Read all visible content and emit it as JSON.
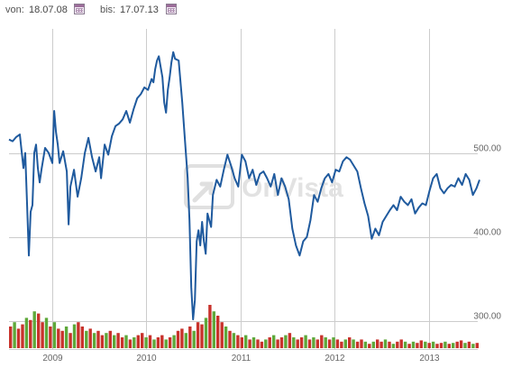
{
  "toolbar": {
    "from_label": "von:",
    "from_value": "18.07.08",
    "to_label": "bis:",
    "to_value": "17.07.13",
    "from_icon": "calendar-icon",
    "to_icon": "calendar-icon"
  },
  "watermark": {
    "text": "OnVista",
    "icon": "onvista-logo"
  },
  "colors": {
    "line": "#1f5a9e",
    "grid": "#cccccc",
    "vol_up": "#5ea83a",
    "vol_down": "#c8322b"
  },
  "chart_data": {
    "type": "line",
    "x_range": [
      "2008-07-18",
      "2013-07-17"
    ],
    "ylim": [
      260,
      560
    ],
    "yticks": [
      300,
      400,
      500
    ],
    "ytick_labels": [
      "300.00",
      "400.00",
      "500.00"
    ],
    "xticks": [
      "2009",
      "2010",
      "2011",
      "2012",
      "2013"
    ],
    "grid": true,
    "series": [
      {
        "values": [
          [
            "2008-07-18",
            516
          ],
          [
            "2008-08-01",
            514
          ],
          [
            "2008-08-15",
            519
          ],
          [
            "2008-08-29",
            522
          ],
          [
            "2008-09-12",
            482
          ],
          [
            "2008-09-19",
            500
          ],
          [
            "2008-09-26",
            440
          ],
          [
            "2008-10-03",
            378
          ],
          [
            "2008-10-10",
            430
          ],
          [
            "2008-10-17",
            438
          ],
          [
            "2008-10-24",
            500
          ],
          [
            "2008-10-31",
            510
          ],
          [
            "2008-11-07",
            482
          ],
          [
            "2008-11-14",
            465
          ],
          [
            "2008-11-21",
            480
          ],
          [
            "2008-12-05",
            506
          ],
          [
            "2008-12-19",
            500
          ],
          [
            "2009-01-02",
            488
          ],
          [
            "2009-01-09",
            550
          ],
          [
            "2009-01-16",
            525
          ],
          [
            "2009-01-23",
            510
          ],
          [
            "2009-01-30",
            488
          ],
          [
            "2009-02-13",
            502
          ],
          [
            "2009-02-27",
            478
          ],
          [
            "2009-03-06",
            415
          ],
          [
            "2009-03-13",
            460
          ],
          [
            "2009-03-27",
            480
          ],
          [
            "2009-04-10",
            448
          ],
          [
            "2009-04-24",
            470
          ],
          [
            "2009-05-08",
            500
          ],
          [
            "2009-05-22",
            518
          ],
          [
            "2009-06-05",
            495
          ],
          [
            "2009-06-19",
            478
          ],
          [
            "2009-07-03",
            495
          ],
          [
            "2009-07-10",
            470
          ],
          [
            "2009-07-24",
            510
          ],
          [
            "2009-08-07",
            498
          ],
          [
            "2009-08-21",
            520
          ],
          [
            "2009-09-04",
            532
          ],
          [
            "2009-09-18",
            535
          ],
          [
            "2009-10-02",
            540
          ],
          [
            "2009-10-16",
            550
          ],
          [
            "2009-10-30",
            536
          ],
          [
            "2009-11-13",
            552
          ],
          [
            "2009-11-27",
            565
          ],
          [
            "2009-12-11",
            570
          ],
          [
            "2009-12-25",
            578
          ],
          [
            "2010-01-08",
            575
          ],
          [
            "2010-01-22",
            588
          ],
          [
            "2010-01-29",
            584
          ],
          [
            "2010-02-05",
            600
          ],
          [
            "2010-02-12",
            610
          ],
          [
            "2010-02-19",
            615
          ],
          [
            "2010-03-05",
            590
          ],
          [
            "2010-03-12",
            560
          ],
          [
            "2010-03-19",
            548
          ],
          [
            "2010-03-26",
            575
          ],
          [
            "2010-04-02",
            590
          ],
          [
            "2010-04-09",
            608
          ],
          [
            "2010-04-16",
            620
          ],
          [
            "2010-04-23",
            612
          ],
          [
            "2010-05-07",
            610
          ],
          [
            "2010-05-21",
            560
          ],
          [
            "2010-06-04",
            500
          ],
          [
            "2010-06-11",
            470
          ],
          [
            "2010-06-18",
            420
          ],
          [
            "2010-06-25",
            340
          ],
          [
            "2010-07-02",
            302
          ],
          [
            "2010-07-09",
            325
          ],
          [
            "2010-07-16",
            395
          ],
          [
            "2010-07-23",
            408
          ],
          [
            "2010-07-30",
            390
          ],
          [
            "2010-08-06",
            418
          ],
          [
            "2010-08-13",
            395
          ],
          [
            "2010-08-20",
            380
          ],
          [
            "2010-08-27",
            428
          ],
          [
            "2010-09-03",
            420
          ],
          [
            "2010-09-10",
            412
          ],
          [
            "2010-09-17",
            450
          ],
          [
            "2010-10-01",
            468
          ],
          [
            "2010-10-15",
            460
          ],
          [
            "2010-10-29",
            480
          ],
          [
            "2010-11-12",
            498
          ],
          [
            "2010-11-26",
            485
          ],
          [
            "2010-12-10",
            470
          ],
          [
            "2010-12-24",
            460
          ],
          [
            "2011-01-07",
            498
          ],
          [
            "2011-01-21",
            490
          ],
          [
            "2011-02-04",
            470
          ],
          [
            "2011-02-18",
            480
          ],
          [
            "2011-03-04",
            462
          ],
          [
            "2011-03-18",
            475
          ],
          [
            "2011-04-01",
            478
          ],
          [
            "2011-04-15",
            470
          ],
          [
            "2011-04-29",
            460
          ],
          [
            "2011-05-13",
            475
          ],
          [
            "2011-05-27",
            450
          ],
          [
            "2011-06-10",
            470
          ],
          [
            "2011-06-24",
            460
          ],
          [
            "2011-07-08",
            445
          ],
          [
            "2011-07-22",
            410
          ],
          [
            "2011-08-05",
            390
          ],
          [
            "2011-08-19",
            378
          ],
          [
            "2011-09-02",
            395
          ],
          [
            "2011-09-16",
            400
          ],
          [
            "2011-09-30",
            420
          ],
          [
            "2011-10-14",
            450
          ],
          [
            "2011-10-28",
            442
          ],
          [
            "2011-11-11",
            458
          ],
          [
            "2011-11-25",
            470
          ],
          [
            "2011-12-09",
            475
          ],
          [
            "2011-12-23",
            465
          ],
          [
            "2012-01-06",
            480
          ],
          [
            "2012-01-20",
            478
          ],
          [
            "2012-02-03",
            490
          ],
          [
            "2012-02-17",
            495
          ],
          [
            "2012-03-02",
            492
          ],
          [
            "2012-03-16",
            485
          ],
          [
            "2012-03-30",
            478
          ],
          [
            "2012-04-13",
            458
          ],
          [
            "2012-04-27",
            440
          ],
          [
            "2012-05-11",
            425
          ],
          [
            "2012-05-25",
            398
          ],
          [
            "2012-06-08",
            410
          ],
          [
            "2012-06-22",
            402
          ],
          [
            "2012-07-06",
            418
          ],
          [
            "2012-07-20",
            425
          ],
          [
            "2012-08-03",
            432
          ],
          [
            "2012-08-17",
            438
          ],
          [
            "2012-08-31",
            432
          ],
          [
            "2012-09-14",
            448
          ],
          [
            "2012-09-28",
            442
          ],
          [
            "2012-10-12",
            438
          ],
          [
            "2012-10-26",
            445
          ],
          [
            "2012-11-09",
            428
          ],
          [
            "2012-11-23",
            435
          ],
          [
            "2012-12-07",
            440
          ],
          [
            "2012-12-21",
            438
          ],
          [
            "2013-01-04",
            455
          ],
          [
            "2013-01-18",
            470
          ],
          [
            "2013-02-01",
            475
          ],
          [
            "2013-02-15",
            458
          ],
          [
            "2013-03-01",
            452
          ],
          [
            "2013-03-15",
            458
          ],
          [
            "2013-03-29",
            462
          ],
          [
            "2013-04-12",
            460
          ],
          [
            "2013-04-26",
            470
          ],
          [
            "2013-05-10",
            462
          ],
          [
            "2013-05-24",
            475
          ],
          [
            "2013-06-07",
            468
          ],
          [
            "2013-06-21",
            450
          ],
          [
            "2013-07-05",
            458
          ],
          [
            "2013-07-17",
            468
          ]
        ]
      }
    ],
    "volume": {
      "type": "bar",
      "unit": "relative",
      "values": [
        0.5,
        0.6,
        0.45,
        0.55,
        0.7,
        0.65,
        0.85,
        0.8,
        0.6,
        0.7,
        0.5,
        0.6,
        0.45,
        0.4,
        0.5,
        0.35,
        0.55,
        0.6,
        0.5,
        0.4,
        0.45,
        0.35,
        0.4,
        0.3,
        0.35,
        0.4,
        0.3,
        0.35,
        0.25,
        0.3,
        0.2,
        0.25,
        0.3,
        0.35,
        0.25,
        0.3,
        0.2,
        0.25,
        0.3,
        0.2,
        0.25,
        0.3,
        0.4,
        0.45,
        0.35,
        0.5,
        0.4,
        0.6,
        0.55,
        0.7,
        1.0,
        0.85,
        0.75,
        0.6,
        0.5,
        0.4,
        0.35,
        0.3,
        0.25,
        0.3,
        0.2,
        0.25,
        0.2,
        0.15,
        0.2,
        0.25,
        0.3,
        0.2,
        0.25,
        0.3,
        0.35,
        0.25,
        0.2,
        0.25,
        0.3,
        0.2,
        0.25,
        0.2,
        0.3,
        0.25,
        0.2,
        0.25,
        0.2,
        0.15,
        0.2,
        0.25,
        0.2,
        0.15,
        0.2,
        0.15,
        0.1,
        0.15,
        0.2,
        0.15,
        0.2,
        0.15,
        0.1,
        0.15,
        0.2,
        0.15,
        0.1,
        0.15,
        0.12,
        0.18,
        0.15,
        0.12,
        0.15,
        0.1,
        0.12,
        0.15,
        0.1,
        0.12,
        0.15,
        0.18,
        0.12,
        0.15,
        0.1,
        0.12
      ]
    }
  }
}
